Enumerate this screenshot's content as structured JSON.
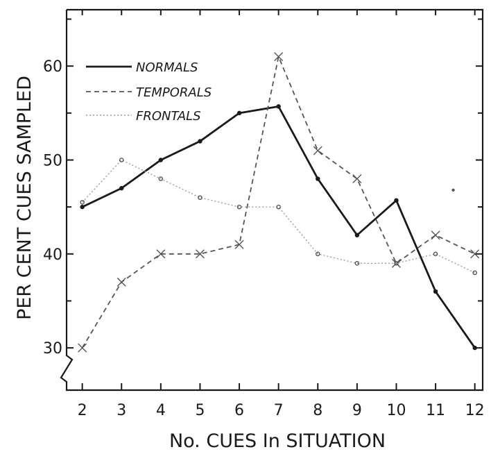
{
  "chart_data": {
    "type": "line",
    "xlabel": "No. CUES In SITUATION",
    "ylabel": "PER CENT CUES SAMPLED",
    "x": [
      2,
      3,
      4,
      5,
      6,
      7,
      8,
      9,
      10,
      11,
      12
    ],
    "x_ticks": [
      "2",
      "3",
      "4",
      "5",
      "6",
      "7",
      "8",
      "9",
      "10",
      "11",
      "12"
    ],
    "y_ticks": [
      "30",
      "40",
      "50",
      "60"
    ],
    "xlim": [
      1.6,
      12.2
    ],
    "ylim": [
      25.5,
      66
    ],
    "y_axis_break": true,
    "legend_position": "top-left",
    "series": [
      {
        "name": "NORMALS",
        "style": "solid",
        "color": "#1a1a1a",
        "values": [
          45,
          47,
          50,
          52,
          55,
          55.7,
          48,
          42,
          45.7,
          36,
          30
        ]
      },
      {
        "name": "TEMPORALS",
        "style": "dashed",
        "color": "#555555",
        "values": [
          30,
          37,
          40,
          40,
          41,
          61,
          51,
          48,
          39,
          42,
          40
        ]
      },
      {
        "name": "FRONTALS",
        "style": "dotted",
        "color": "#9a9a9a",
        "values": [
          45.5,
          50,
          48,
          46,
          45,
          45,
          40,
          39,
          39,
          40,
          38
        ]
      }
    ],
    "stray_mark": {
      "x": 11.45,
      "y": 46.8
    }
  }
}
